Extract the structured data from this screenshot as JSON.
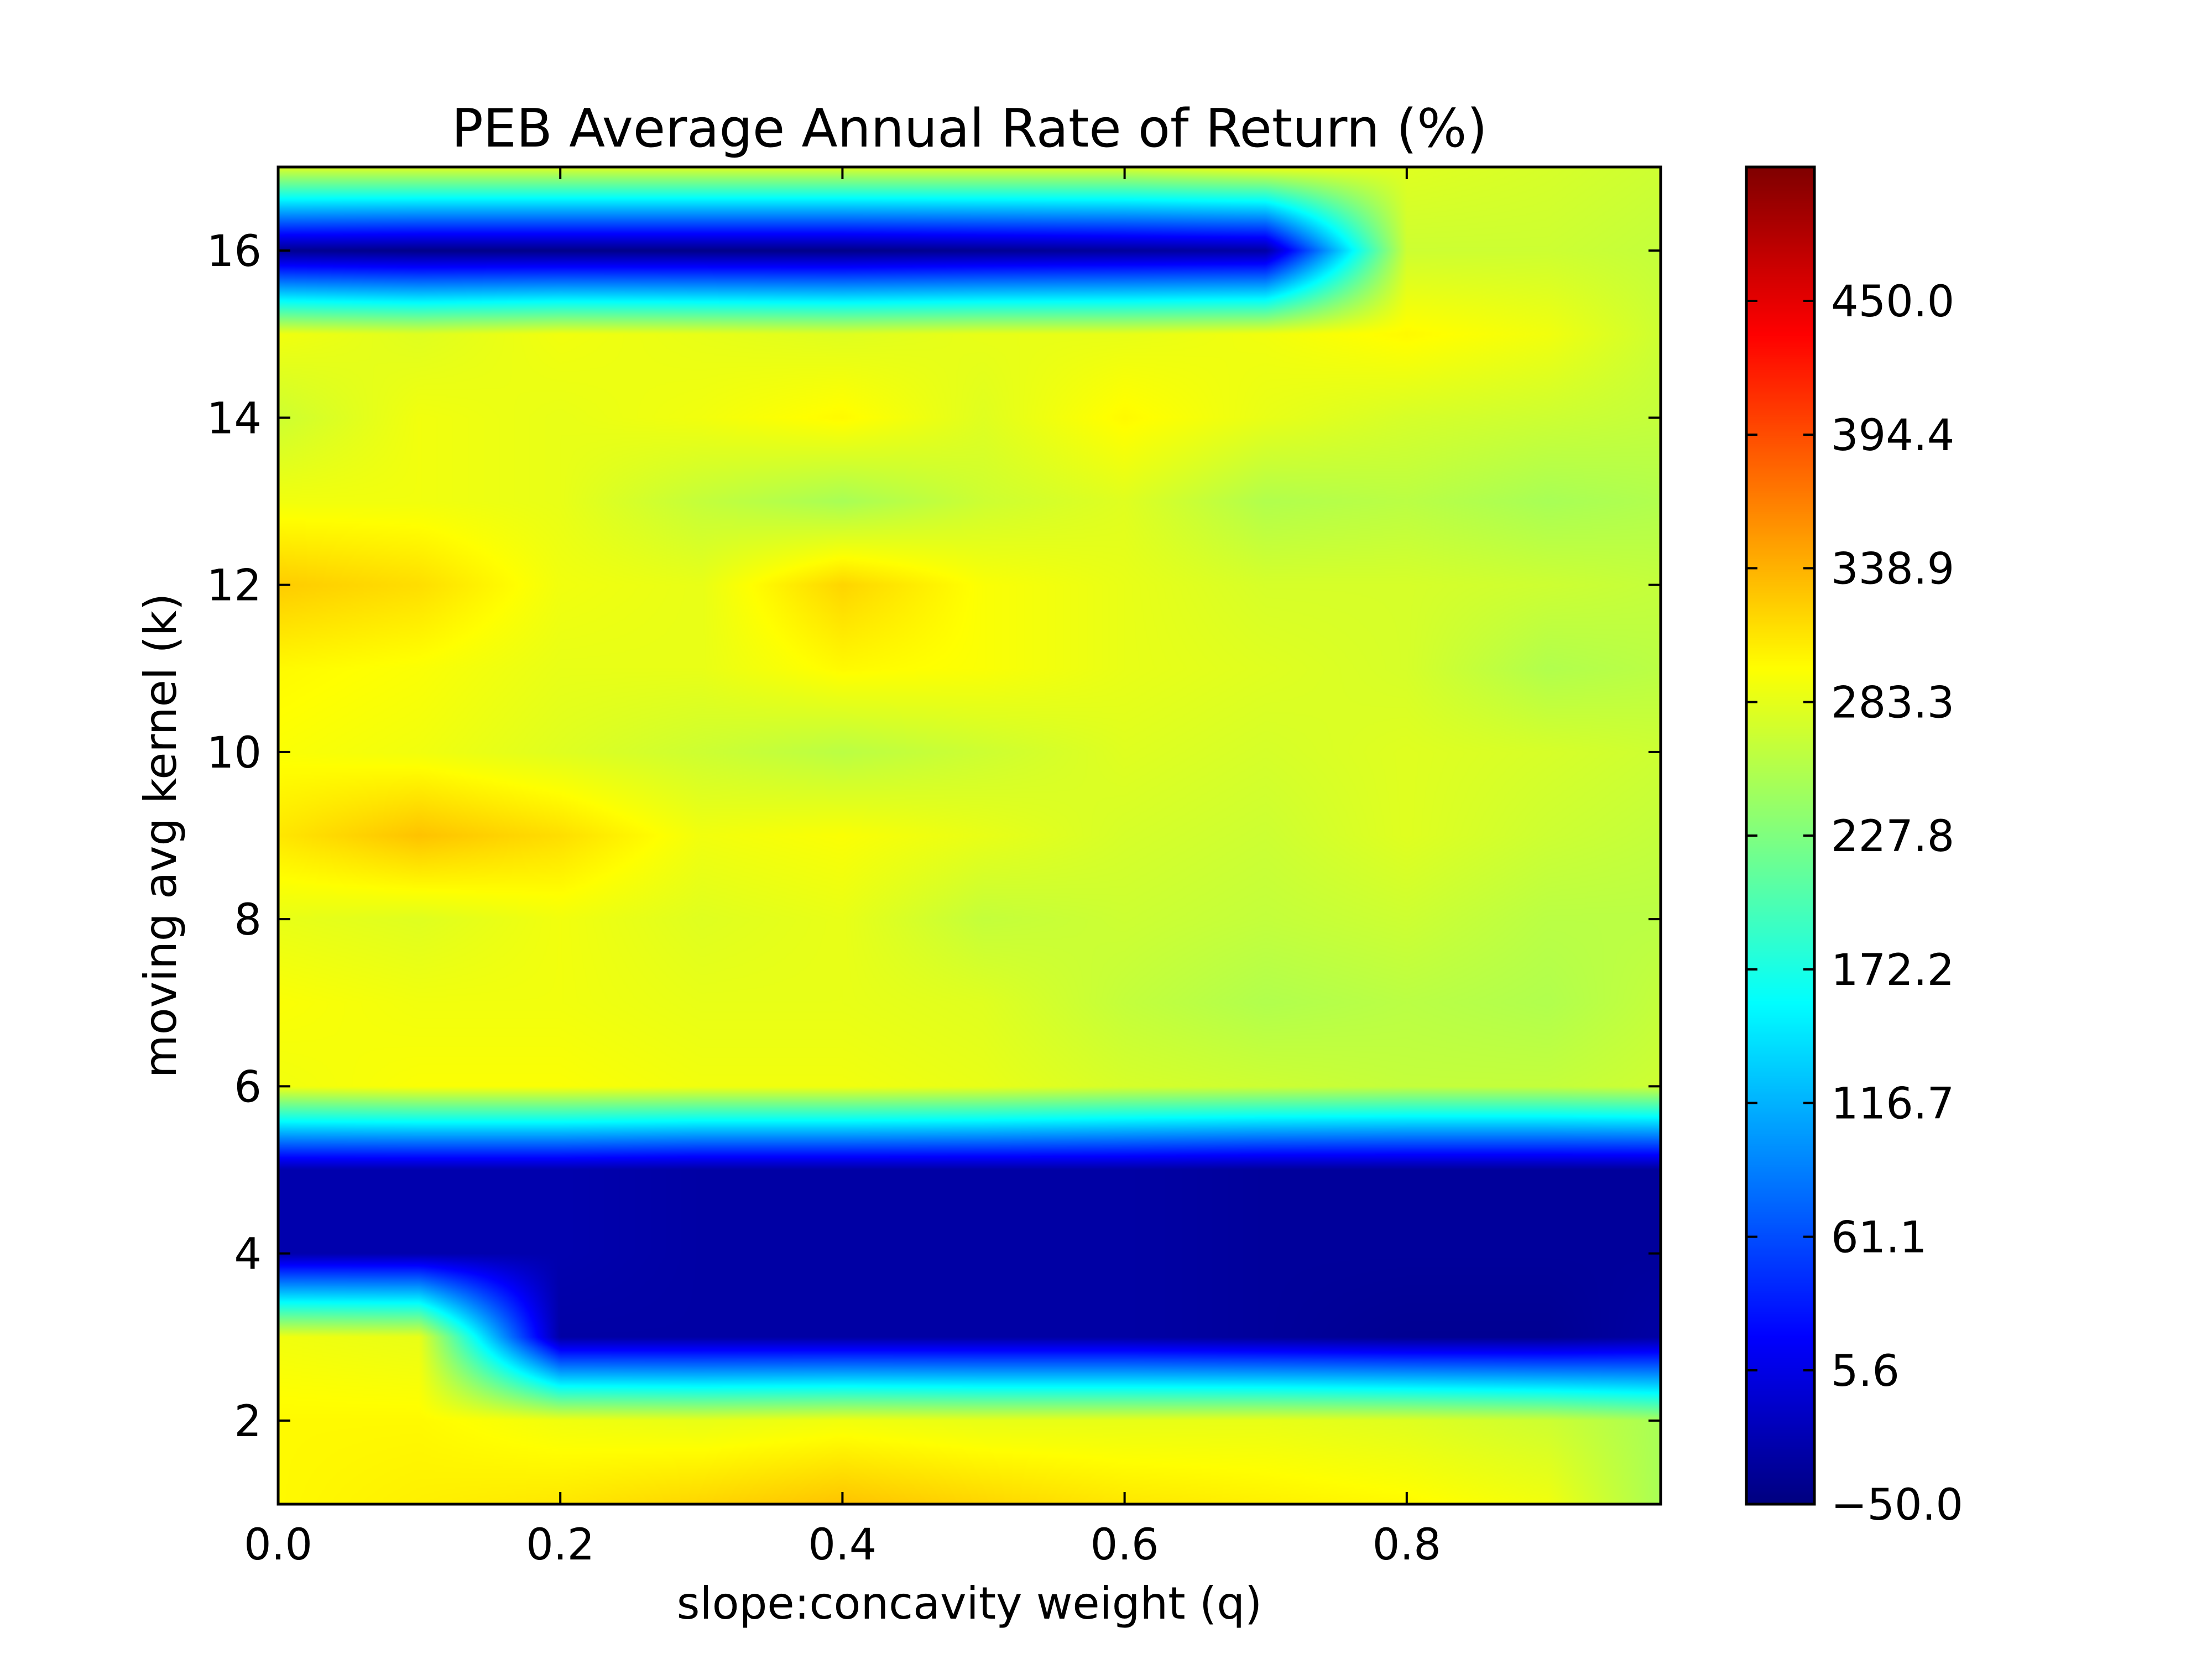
{
  "chart_data": {
    "type": "heatmap",
    "title": "PEB Average Annual Rate of Return (%)",
    "xlabel": "slope:concavity weight (q)",
    "ylabel": "moving avg kernel (k)",
    "xlim": [
      0.0,
      0.98
    ],
    "ylim": [
      1,
      17
    ],
    "x_ticks": [
      "0.0",
      "0.2",
      "0.4",
      "0.6",
      "0.8"
    ],
    "x_tick_values": [
      0.0,
      0.2,
      0.4,
      0.6,
      0.8
    ],
    "y_ticks": [
      "2",
      "4",
      "6",
      "8",
      "10",
      "12",
      "14",
      "16"
    ],
    "y_tick_values": [
      2,
      4,
      6,
      8,
      10,
      12,
      14,
      16
    ],
    "colorbar": {
      "min": -50.0,
      "max": 505.6,
      "colormap": "jet",
      "tick_labels": [
        "−50.0",
        "5.6",
        "61.1",
        "116.7",
        "172.2",
        "227.8",
        "283.3",
        "338.9",
        "394.4",
        "450.0"
      ],
      "tick_values": [
        -50.0,
        5.6,
        61.1,
        116.7,
        172.2,
        227.8,
        283.3,
        338.9,
        394.4,
        450.0
      ]
    },
    "q_values": [
      0.0,
      0.1,
      0.2,
      0.3,
      0.4,
      0.5,
      0.6,
      0.7,
      0.8,
      0.9,
      0.98
    ],
    "k_values": [
      1,
      2,
      3,
      4,
      5,
      6,
      7,
      8,
      9,
      10,
      11,
      12,
      13,
      14,
      15,
      16,
      17
    ],
    "values": [
      [
        300,
        305,
        310,
        320,
        330,
        320,
        310,
        305,
        300,
        290,
        250
      ],
      [
        300,
        300,
        290,
        285,
        290,
        285,
        285,
        285,
        280,
        270,
        250
      ],
      [
        290,
        285,
        -30,
        -30,
        -30,
        -30,
        -30,
        -35,
        -40,
        -40,
        -30
      ],
      [
        -25,
        -25,
        -25,
        -30,
        -30,
        -30,
        -30,
        -35,
        -35,
        -35,
        -35
      ],
      [
        -25,
        -25,
        -25,
        -30,
        -30,
        -30,
        -30,
        -35,
        -35,
        -35,
        -35
      ],
      [
        290,
        295,
        295,
        290,
        290,
        285,
        275,
        270,
        265,
        265,
        270
      ],
      [
        295,
        290,
        290,
        285,
        285,
        280,
        265,
        255,
        260,
        255,
        265
      ],
      [
        285,
        280,
        290,
        280,
        285,
        265,
        270,
        265,
        270,
        260,
        260
      ],
      [
        310,
        330,
        315,
        290,
        295,
        285,
        275,
        270,
        280,
        270,
        265
      ],
      [
        295,
        290,
        280,
        270,
        260,
        270,
        280,
        275,
        280,
        275,
        270
      ],
      [
        300,
        295,
        285,
        285,
        300,
        295,
        285,
        280,
        275,
        255,
        260
      ],
      [
        325,
        315,
        290,
        285,
        320,
        295,
        285,
        275,
        275,
        270,
        265
      ],
      [
        290,
        290,
        285,
        265,
        250,
        270,
        280,
        255,
        260,
        250,
        255
      ],
      [
        270,
        290,
        285,
        290,
        300,
        280,
        300,
        285,
        275,
        270,
        265
      ],
      [
        290,
        280,
        290,
        285,
        280,
        285,
        285,
        290,
        300,
        290,
        270
      ],
      [
        -40,
        -45,
        -45,
        -45,
        -45,
        -40,
        -35,
        -30,
        270,
        270,
        265
      ],
      [
        280,
        280,
        280,
        280,
        280,
        280,
        280,
        290,
        280,
        275,
        270
      ]
    ]
  }
}
